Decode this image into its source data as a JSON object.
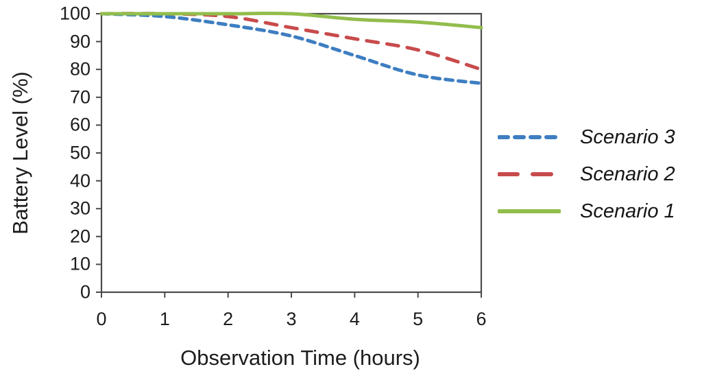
{
  "chart_data": {
    "type": "line",
    "title": "",
    "xlabel": "Observation Time (hours)",
    "ylabel": "Battery Level (%)",
    "x": [
      0,
      1,
      2,
      3,
      4,
      5,
      6
    ],
    "x_tick_labels": [
      "0",
      "1",
      "2",
      "3",
      "4",
      "5",
      "6"
    ],
    "y_tick_labels": [
      "0",
      "10",
      "20",
      "30",
      "40",
      "50",
      "60",
      "70",
      "80",
      "90",
      "100"
    ],
    "xlim": [
      0,
      6
    ],
    "ylim": [
      0,
      100
    ],
    "grid": false,
    "legend_position": "right",
    "series": [
      {
        "name": "Scenario 3",
        "color": "#3E7EC1",
        "dash": "short",
        "values": [
          100,
          99,
          96,
          92,
          85,
          78,
          75
        ]
      },
      {
        "name": "Scenario 2",
        "color": "#C84B4C",
        "dash": "long",
        "values": [
          100,
          100,
          99,
          95,
          91,
          87,
          80
        ]
      },
      {
        "name": "Scenario 1",
        "color": "#92BD4C",
        "dash": "solid",
        "values": [
          100,
          100,
          100,
          100,
          98,
          97,
          95
        ]
      }
    ]
  },
  "colors": {
    "axis": "#4a4a4a",
    "text": "#1c1c1c",
    "background": "#ffffff"
  }
}
